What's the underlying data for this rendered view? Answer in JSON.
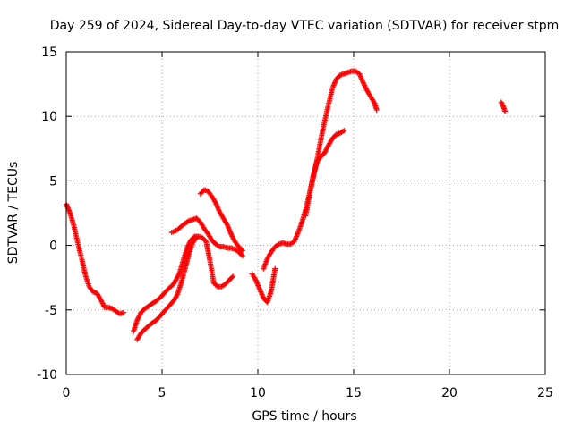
{
  "chart_data": {
    "type": "scatter",
    "title": "Day 259 of 2024, Sidereal Day-to-day VTEC variation (SDTVAR) for receiver stpm",
    "xlabel": "GPS time / hours",
    "ylabel": "SDTVAR / TECUs",
    "xlim": [
      0,
      25
    ],
    "ylim": [
      -10,
      15
    ],
    "xticks": [
      0,
      5,
      10,
      15,
      20,
      25
    ],
    "yticks": [
      -10,
      -5,
      0,
      5,
      10,
      15
    ],
    "xtick_labels": [
      "0",
      "5",
      "10",
      "15",
      "20",
      "25"
    ],
    "ytick_labels": [
      "-10",
      "-5",
      "0",
      "5",
      "10",
      "15"
    ],
    "grid": true,
    "marker": "+",
    "color": "#ff0000",
    "series": [
      {
        "name": "arc-1",
        "x": [
          0.0,
          0.2,
          0.4,
          0.6,
          0.8,
          1.0,
          1.2,
          1.4,
          1.6,
          1.8,
          2.0,
          2.2,
          2.4,
          2.6,
          2.8,
          3.0
        ],
        "y": [
          3.2,
          2.5,
          1.5,
          0.2,
          -1.0,
          -2.3,
          -3.2,
          -3.6,
          -3.7,
          -4.2,
          -4.8,
          -4.8,
          -4.9,
          -5.1,
          -5.3,
          -5.2
        ]
      },
      {
        "name": "arc-2",
        "x": [
          3.5,
          3.7,
          3.9,
          4.1,
          4.4,
          4.7,
          5.0,
          5.3,
          5.6,
          5.9,
          6.1,
          6.3,
          6.5,
          6.7,
          6.9,
          7.1,
          7.3,
          7.5,
          7.7,
          7.9,
          8.1,
          8.3,
          8.5,
          8.7
        ],
        "y": [
          -6.7,
          -5.8,
          -5.2,
          -4.9,
          -4.6,
          -4.3,
          -3.9,
          -3.4,
          -3.0,
          -2.2,
          -1.2,
          -0.2,
          0.4,
          0.7,
          0.7,
          0.6,
          0.3,
          -1.2,
          -2.9,
          -3.2,
          -3.2,
          -3.0,
          -2.7,
          -2.4
        ]
      },
      {
        "name": "arc-3",
        "x": [
          3.7,
          3.9,
          4.1,
          4.4,
          4.7,
          5.0,
          5.3,
          5.6,
          5.8,
          6.0,
          6.2,
          6.4,
          6.6,
          6.8
        ],
        "y": [
          -7.3,
          -6.8,
          -6.5,
          -6.1,
          -5.8,
          -5.3,
          -4.8,
          -4.3,
          -3.8,
          -2.9,
          -1.8,
          -0.7,
          0.2,
          0.6
        ]
      },
      {
        "name": "arc-4",
        "x": [
          5.5,
          5.8,
          6.1,
          6.4,
          6.6,
          6.8,
          7.0,
          7.2,
          7.4,
          7.6,
          7.8,
          8.0,
          8.2,
          8.4,
          8.6,
          8.8,
          9.0,
          9.2
        ],
        "y": [
          1.0,
          1.2,
          1.6,
          1.9,
          2.0,
          2.1,
          1.8,
          1.3,
          0.9,
          0.4,
          0.1,
          -0.1,
          -0.1,
          -0.2,
          -0.2,
          -0.3,
          -0.5,
          -0.8
        ]
      },
      {
        "name": "arc-5",
        "x": [
          7.0,
          7.2,
          7.4,
          7.6,
          7.8,
          8.0,
          8.2,
          8.4,
          8.6,
          8.8,
          9.0,
          9.2
        ],
        "y": [
          4.0,
          4.3,
          4.2,
          3.8,
          3.3,
          2.6,
          2.1,
          1.6,
          0.9,
          0.3,
          -0.1,
          -0.4
        ]
      },
      {
        "name": "arc-6",
        "x": [
          9.7,
          9.9,
          10.1,
          10.3,
          10.5,
          10.7,
          10.9
        ],
        "y": [
          -2.2,
          -2.7,
          -3.4,
          -4.1,
          -4.4,
          -3.5,
          -1.8
        ]
      },
      {
        "name": "arc-7",
        "x": [
          10.3,
          10.5,
          10.7,
          10.9,
          11.1,
          11.3,
          11.5,
          11.7,
          11.9,
          12.1,
          12.3,
          12.5,
          12.7,
          12.9,
          13.1,
          13.3,
          13.5,
          13.7,
          13.9,
          14.1,
          14.3,
          14.5,
          14.7,
          14.9,
          15.1,
          15.3,
          15.5,
          15.7,
          15.9,
          16.1,
          16.2
        ],
        "y": [
          -1.8,
          -1.0,
          -0.5,
          -0.1,
          0.1,
          0.2,
          0.1,
          0.1,
          0.3,
          1.0,
          1.8,
          2.8,
          4.0,
          5.3,
          6.7,
          8.3,
          9.7,
          11.0,
          12.2,
          12.9,
          13.2,
          13.3,
          13.4,
          13.5,
          13.5,
          13.3,
          12.6,
          12.0,
          11.5,
          11.0,
          10.5
        ]
      },
      {
        "name": "arc-8",
        "x": [
          12.5,
          12.7,
          12.9,
          13.1,
          13.3,
          13.5,
          13.7,
          13.9,
          14.1,
          14.3,
          14.5
        ],
        "y": [
          2.3,
          4.0,
          5.5,
          6.5,
          6.9,
          7.2,
          7.8,
          8.3,
          8.6,
          8.7,
          8.9
        ]
      },
      {
        "name": "arc-9",
        "x": [
          22.7,
          22.8,
          22.9
        ],
        "y": [
          11.1,
          10.8,
          10.4
        ]
      }
    ]
  }
}
